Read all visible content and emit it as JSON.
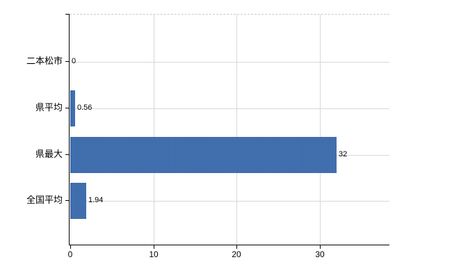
{
  "chart_data": {
    "type": "bar",
    "orientation": "horizontal",
    "categories": [
      "二本松市",
      "県平均",
      "県最大",
      "全国平均"
    ],
    "values": [
      0,
      0.56,
      32,
      1.94
    ],
    "value_labels": [
      "0",
      "0.56",
      "32",
      "1.94"
    ],
    "x_axis": {
      "ticks": [
        0,
        10,
        20,
        30
      ],
      "tick_labels": [
        "0",
        "10",
        "20",
        "30"
      ],
      "range": [
        0,
        38.3
      ]
    },
    "grid": true,
    "legend": "none",
    "colors": {
      "bar_primary": "#33629e",
      "bar_secondary": "#4d7abd",
      "grid": "#d8d8d8",
      "axis": "#000000",
      "text": "#000000",
      "plot_top_border": "#c9c9c9",
      "background": "#ffffff"
    }
  }
}
